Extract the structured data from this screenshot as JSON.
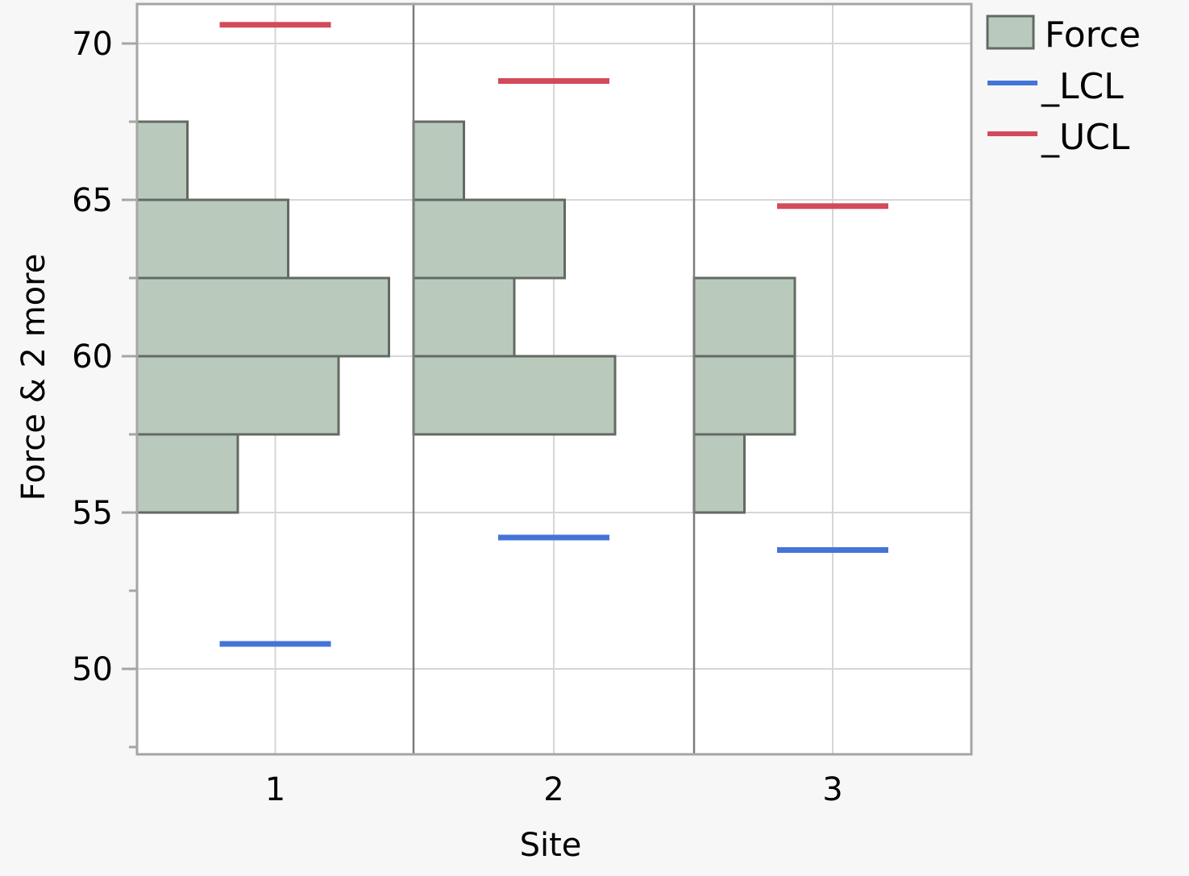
{
  "chart_data": {
    "type": "bar",
    "orientation": "horizontal-histogram",
    "title": "",
    "xlabel": "Site",
    "ylabel": "Force & 2 more",
    "ylim": [
      47.3,
      71.3
    ],
    "y_ticks": [
      50,
      55,
      60,
      65,
      70
    ],
    "y_minor_ticks": [
      47.5,
      52.5,
      57.5,
      62.5,
      67.5
    ],
    "categories": [
      "1",
      "2",
      "3"
    ],
    "grid": true,
    "legend_position": "right",
    "legend": [
      {
        "label": "Force",
        "type": "box",
        "color": "#b9cabd",
        "stroke": "#636a62"
      },
      {
        "label": "_LCL",
        "type": "line",
        "color": "#4574d8"
      },
      {
        "label": "_UCL",
        "type": "line",
        "color": "#d34b5a"
      }
    ],
    "histograms": [
      {
        "site": "1",
        "bins": [
          {
            "from": 55,
            "to": 57.5,
            "count": 2
          },
          {
            "from": 57.5,
            "to": 60,
            "count": 4
          },
          {
            "from": 60,
            "to": 62.5,
            "count": 5
          },
          {
            "from": 62.5,
            "to": 65,
            "count": 3
          },
          {
            "from": 65,
            "to": 67.5,
            "count": 1
          }
        ],
        "LCL": 50.8,
        "UCL": 70.6
      },
      {
        "site": "2",
        "bins": [
          {
            "from": 57.5,
            "to": 60,
            "count": 4
          },
          {
            "from": 60,
            "to": 62.5,
            "count": 2
          },
          {
            "from": 62.5,
            "to": 65,
            "count": 3
          },
          {
            "from": 65,
            "to": 67.5,
            "count": 1
          }
        ],
        "LCL": 54.2,
        "UCL": 68.8
      },
      {
        "site": "3",
        "bins": [
          {
            "from": 55,
            "to": 57.5,
            "count": 1
          },
          {
            "from": 57.5,
            "to": 60,
            "count": 2
          },
          {
            "from": 60,
            "to": 62.5,
            "count": 2
          }
        ],
        "LCL": 53.8,
        "UCL": 64.8
      }
    ],
    "series": [
      {
        "name": "_LCL",
        "values": [
          50.8,
          54.2,
          53.8
        ]
      },
      {
        "name": "_UCL",
        "values": [
          70.6,
          68.8,
          64.8
        ]
      }
    ]
  }
}
